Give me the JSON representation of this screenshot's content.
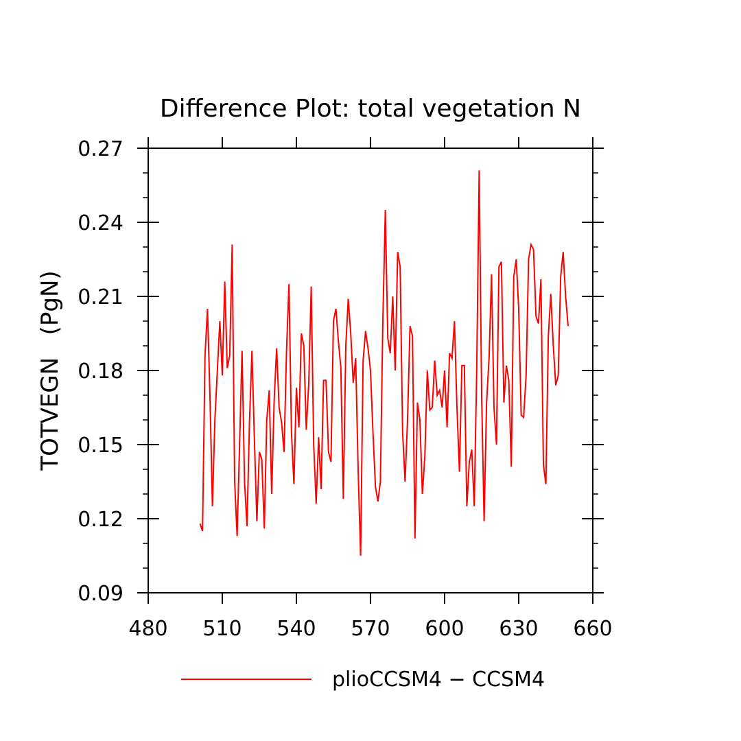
{
  "chart_data": {
    "type": "line",
    "title": "Difference Plot: total vegetation N",
    "xlabel": "",
    "ylabel": "TOTVEGN   (PgN)",
    "xlim": [
      480,
      660
    ],
    "ylim": [
      0.09,
      0.27
    ],
    "xticks": [
      480,
      510,
      540,
      570,
      600,
      630,
      660
    ],
    "xtick_labels": [
      "480",
      "510",
      "540",
      "570",
      "600",
      "630",
      "660"
    ],
    "yticks": [
      0.09,
      0.12,
      0.15,
      0.18,
      0.21,
      0.24,
      0.27
    ],
    "ytick_labels": [
      "0.09",
      "0.12",
      "0.15",
      "0.18",
      "0.21",
      "0.24",
      "0.27"
    ],
    "legend_position": "bottom",
    "grid": false,
    "series": [
      {
        "name": "plioCCSM4 − CCSM4",
        "color": "#ff0000",
        "x": [
          501,
          502,
          503,
          504,
          505,
          506,
          507,
          508,
          509,
          510,
          511,
          512,
          513,
          514,
          515,
          516,
          517,
          518,
          519,
          520,
          521,
          522,
          523,
          524,
          525,
          526,
          527,
          528,
          529,
          530,
          531,
          532,
          533,
          534,
          535,
          536,
          537,
          538,
          539,
          540,
          541,
          542,
          543,
          544,
          545,
          546,
          547,
          548,
          549,
          550,
          551,
          552,
          553,
          554,
          555,
          556,
          557,
          558,
          559,
          560,
          561,
          562,
          563,
          564,
          565,
          566,
          567,
          568,
          569,
          570,
          571,
          572,
          573,
          574,
          575,
          576,
          577,
          578,
          579,
          580,
          581,
          582,
          583,
          584,
          585,
          586,
          587,
          588,
          589,
          590,
          591,
          592,
          593,
          594,
          595,
          596,
          597,
          598,
          599,
          600,
          601,
          602,
          603,
          604,
          605,
          606,
          607,
          608,
          609,
          610,
          611,
          612,
          613,
          614,
          615,
          616,
          617,
          618,
          619,
          620,
          621,
          622,
          623,
          624,
          625,
          626,
          627,
          628,
          629,
          630,
          631,
          632,
          633,
          634,
          635,
          636,
          637,
          638,
          639,
          640,
          641,
          642,
          643,
          644,
          645,
          646,
          647,
          648,
          649,
          650
        ],
        "y": [
          0.118,
          0.115,
          0.186,
          0.205,
          0.17,
          0.125,
          0.16,
          0.18,
          0.2,
          0.178,
          0.216,
          0.181,
          0.186,
          0.231,
          0.135,
          0.113,
          0.15,
          0.188,
          0.135,
          0.117,
          0.159,
          0.188,
          0.152,
          0.119,
          0.147,
          0.144,
          0.116,
          0.16,
          0.172,
          0.13,
          0.168,
          0.189,
          0.165,
          0.159,
          0.147,
          0.188,
          0.215,
          0.155,
          0.134,
          0.173,
          0.157,
          0.195,
          0.19,
          0.156,
          0.175,
          0.214,
          0.15,
          0.126,
          0.153,
          0.132,
          0.176,
          0.176,
          0.147,
          0.143,
          0.2,
          0.205,
          0.192,
          0.181,
          0.128,
          0.19,
          0.209,
          0.195,
          0.175,
          0.185,
          0.14,
          0.105,
          0.184,
          0.196,
          0.189,
          0.18,
          0.155,
          0.133,
          0.127,
          0.135,
          0.2,
          0.245,
          0.193,
          0.187,
          0.21,
          0.18,
          0.228,
          0.222,
          0.155,
          0.135,
          0.16,
          0.198,
          0.194,
          0.112,
          0.167,
          0.16,
          0.13,
          0.145,
          0.18,
          0.164,
          0.165,
          0.184,
          0.17,
          0.172,
          0.165,
          0.18,
          0.157,
          0.187,
          0.185,
          0.2,
          0.165,
          0.139,
          0.182,
          0.182,
          0.125,
          0.143,
          0.148,
          0.125,
          0.18,
          0.261,
          0.17,
          0.119,
          0.167,
          0.185,
          0.219,
          0.165,
          0.15,
          0.222,
          0.224,
          0.167,
          0.182,
          0.176,
          0.141,
          0.218,
          0.225,
          0.205,
          0.162,
          0.161,
          0.178,
          0.225,
          0.231,
          0.229,
          0.202,
          0.199,
          0.217,
          0.142,
          0.134,
          0.194,
          0.211,
          0.19,
          0.174,
          0.178,
          0.218,
          0.228,
          0.21,
          0.198
        ]
      }
    ]
  }
}
